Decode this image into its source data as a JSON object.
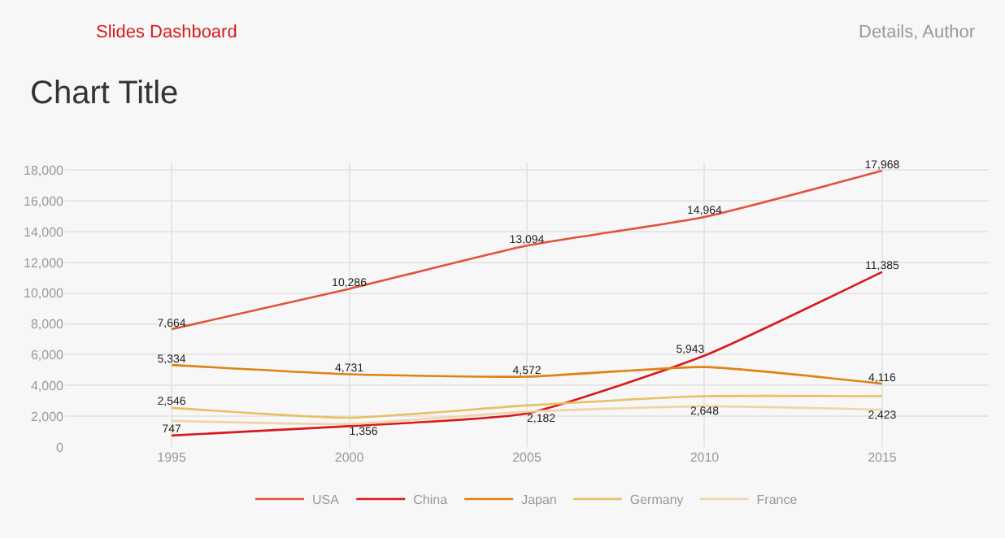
{
  "chart_data": {
    "type": "line",
    "title": "Chart Title",
    "annotations": [
      "Slides Dashboard",
      "Details, Author"
    ],
    "x": [
      1995,
      2000,
      2005,
      2010,
      2015
    ],
    "xlim": [
      1992,
      2018
    ],
    "xticks": [
      1995,
      2000,
      2005,
      2010,
      2015
    ],
    "ylim": [
      0,
      18500
    ],
    "yticks": [
      {
        "value": 0,
        "label": "0"
      },
      {
        "value": 2000,
        "label": "2,000"
      },
      {
        "value": 4000,
        "label": "4,000"
      },
      {
        "value": 6000,
        "label": "6,000"
      },
      {
        "value": 8000,
        "label": "8,000"
      },
      {
        "value": 10000,
        "label": "10,000"
      },
      {
        "value": 12000,
        "label": "12,000"
      },
      {
        "value": 14000,
        "label": "14,000"
      },
      {
        "value": 16000,
        "label": "16,000"
      },
      {
        "value": 18000,
        "label": "18,000"
      }
    ],
    "series": [
      {
        "name": "USA",
        "color": "#e0533a",
        "values": [
          7664,
          10286,
          13094,
          14964,
          17968
        ],
        "value_labels": [
          "7,664",
          "10,286",
          "13,094",
          "14,964",
          "17,968"
        ]
      },
      {
        "name": "China",
        "color": "#d7191c",
        "values": [
          747,
          1356,
          2182,
          5943,
          11385
        ],
        "value_labels": [
          "747",
          "1,356",
          "2,182",
          "5,943",
          "11,385"
        ]
      },
      {
        "name": "Japan",
        "color": "#e08214",
        "values": [
          5334,
          4731,
          4572,
          5200,
          4116
        ],
        "value_labels": [
          "5,334",
          "4,731",
          "4,572",
          null,
          "4,116"
        ]
      },
      {
        "name": "Germany",
        "color": "#e8c060",
        "values": [
          2546,
          1900,
          2700,
          3300,
          3300
        ],
        "value_labels": [
          "2,546",
          null,
          null,
          null,
          null
        ]
      },
      {
        "name": "France",
        "color": "#f2d3a8",
        "values": [
          1700,
          1500,
          2300,
          2648,
          2423
        ],
        "value_labels": [
          null,
          null,
          null,
          "2,648",
          "2,423"
        ]
      }
    ],
    "grid": true,
    "legend": "bottom",
    "marker": "none",
    "line_style": "solid"
  }
}
